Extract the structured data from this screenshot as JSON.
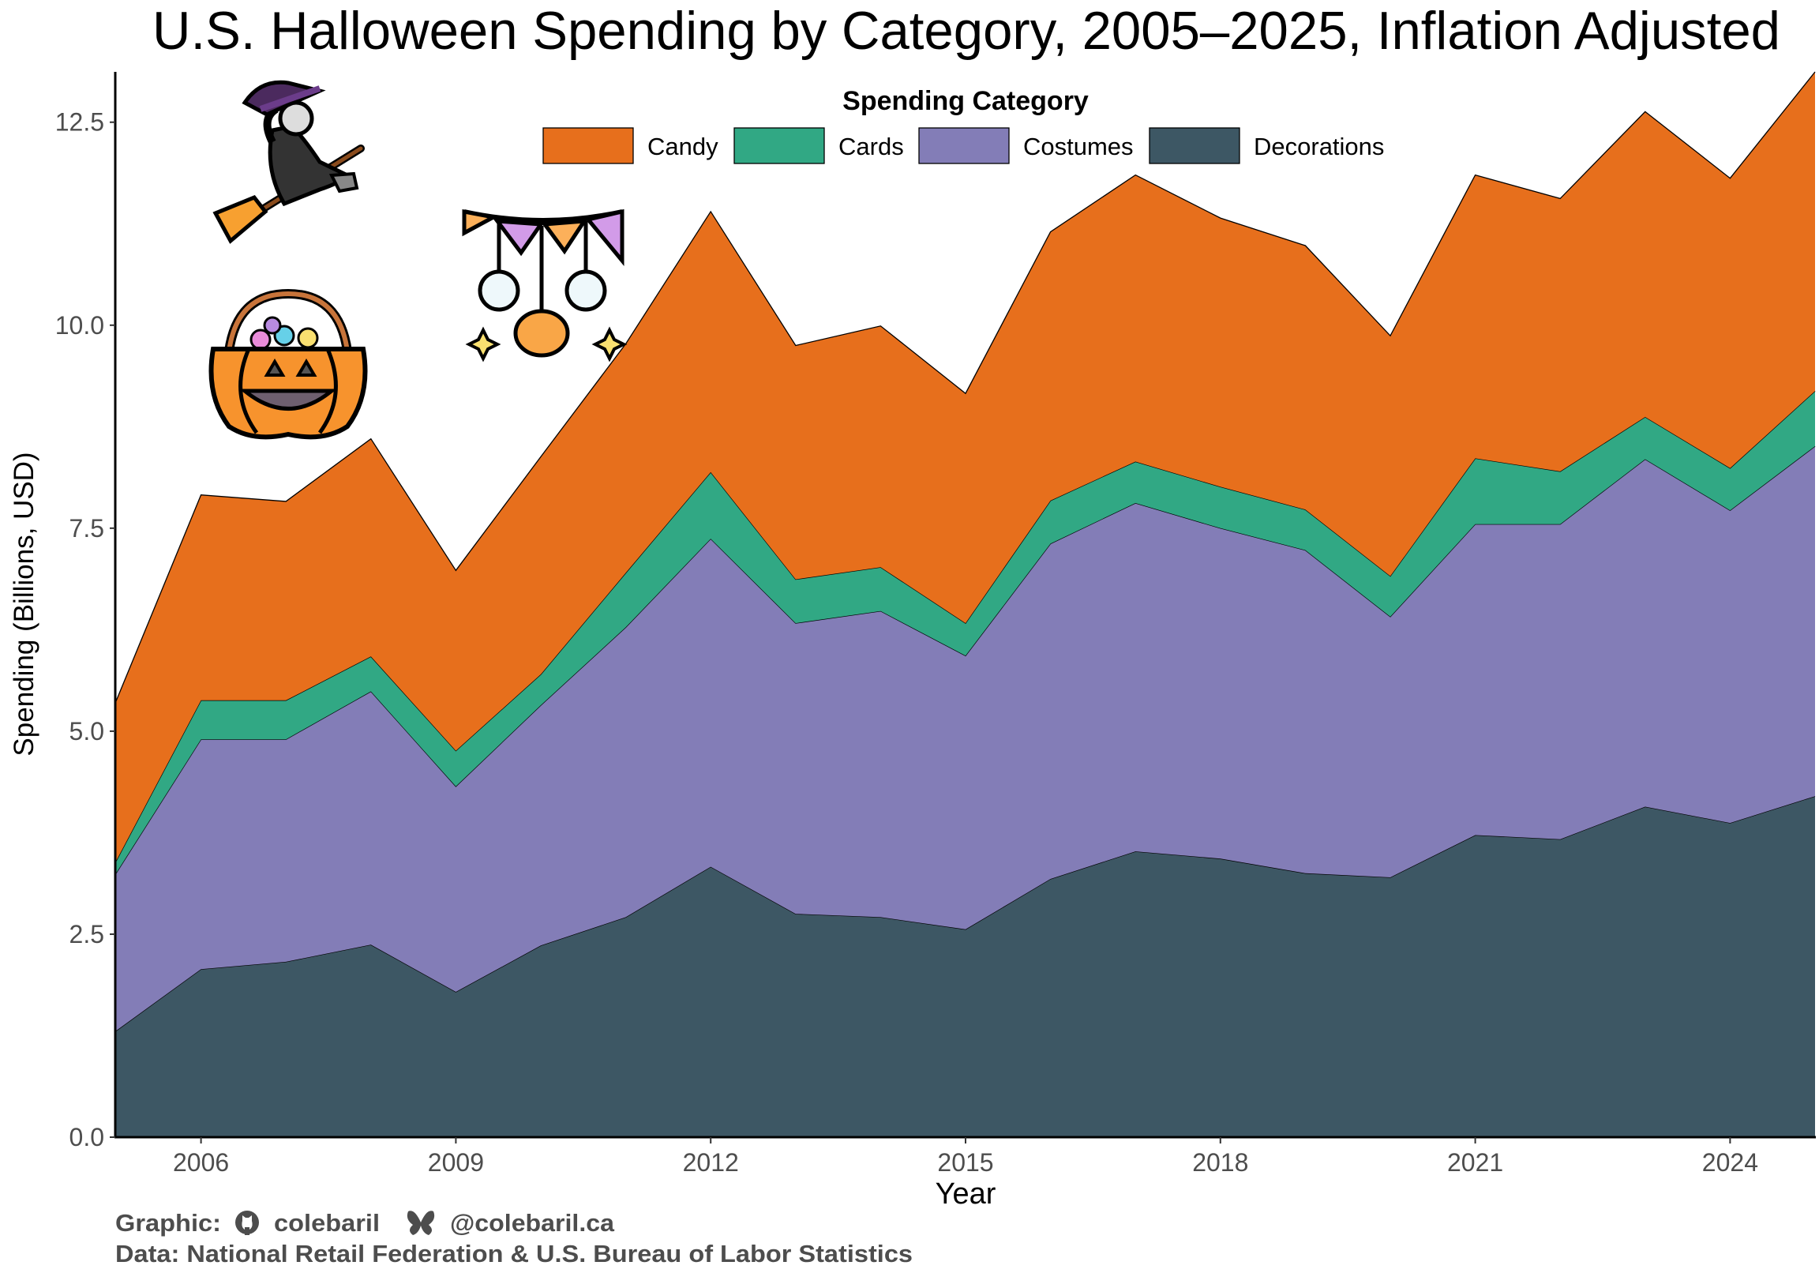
{
  "chart_data": {
    "type": "area",
    "stacked": true,
    "title": "U.S. Halloween Spending by Category, 2005–2025, Inflation Adjusted",
    "xlabel": "Year",
    "ylabel": "Spending (Billions, USD)",
    "xlim": [
      2005,
      2025
    ],
    "ylim": [
      0,
      13.12
    ],
    "x": [
      2005,
      2006,
      2007,
      2008,
      2009,
      2010,
      2011,
      2012,
      2013,
      2014,
      2015,
      2016,
      2017,
      2018,
      2019,
      2020,
      2021,
      2022,
      2023,
      2024,
      2025
    ],
    "xticks": [
      "2006",
      "2009",
      "2012",
      "2015",
      "2018",
      "2021",
      "2024"
    ],
    "yticks": [
      "0.0",
      "2.5",
      "5.0",
      "7.5",
      "10.0",
      "12.5"
    ],
    "legend_title": "Spending Category",
    "legend_position": "top",
    "grid": false,
    "series": [
      {
        "name": "Decorations",
        "color": "#3d5764",
        "values": [
          1.31,
          2.07,
          2.16,
          2.37,
          1.79,
          2.36,
          2.71,
          3.33,
          2.75,
          2.71,
          2.56,
          3.18,
          3.52,
          3.43,
          3.25,
          3.2,
          3.72,
          3.67,
          4.07,
          3.87,
          4.2
        ]
      },
      {
        "name": "Costumes",
        "color": "#837db7",
        "values": [
          1.94,
          2.83,
          2.74,
          3.12,
          2.53,
          2.96,
          3.57,
          4.04,
          3.58,
          3.77,
          3.37,
          4.13,
          4.29,
          4.07,
          3.98,
          3.21,
          3.83,
          3.88,
          4.28,
          3.85,
          4.31
        ]
      },
      {
        "name": "Cards",
        "color": "#31a884",
        "values": [
          0.15,
          0.48,
          0.48,
          0.43,
          0.44,
          0.38,
          0.67,
          0.82,
          0.54,
          0.54,
          0.4,
          0.53,
          0.51,
          0.51,
          0.5,
          0.5,
          0.81,
          0.65,
          0.52,
          0.52,
          0.68
        ]
      },
      {
        "name": "Candy",
        "color": "#e76f1c",
        "values": [
          1.97,
          2.53,
          2.45,
          2.68,
          2.22,
          2.68,
          2.82,
          3.21,
          2.88,
          2.97,
          2.83,
          3.31,
          3.53,
          3.31,
          3.25,
          2.96,
          3.49,
          3.36,
          3.76,
          3.57,
          3.93
        ]
      }
    ],
    "legend_order": [
      "Candy",
      "Cards",
      "Costumes",
      "Decorations"
    ]
  },
  "caption": {
    "graphic_label": "Graphic:",
    "github": "colebaril",
    "bluesky": "@colebaril.ca",
    "data_line": "Data:  National Retail Federation & U.S. Bureau of Labor Statistics"
  },
  "icons": [
    "witch-on-broom-icon",
    "pumpkin-candy-basket-icon",
    "halloween-bunting-icon",
    "github-icon",
    "butterfly-icon"
  ]
}
